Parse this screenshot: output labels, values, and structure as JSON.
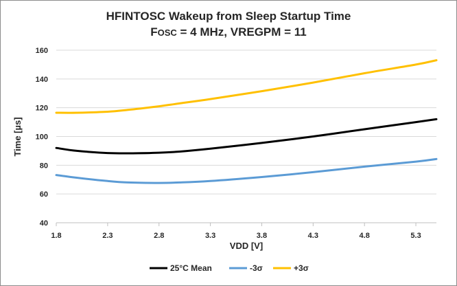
{
  "chart_data": {
    "type": "line",
    "title": "HFINTOSC Wakeup from Sleep Startup Time",
    "subtitle": {
      "prefix": "F",
      "subscript": "OSC",
      "rest": " = 4 MHz, VREGPM = 11"
    },
    "xlabel": "VDD [V]",
    "ylabel": "Time [µs]",
    "xlim": [
      1.8,
      5.5
    ],
    "ylim": [
      40,
      160
    ],
    "xticks": [
      "1.8",
      "2.3",
      "2.8",
      "3.3",
      "3.8",
      "4.3",
      "4.8",
      "5.3"
    ],
    "yticks": [
      "40",
      "60",
      "80",
      "100",
      "120",
      "140",
      "160"
    ],
    "grid": "horizontal",
    "legend_position": "bottom",
    "series": [
      {
        "name": "25°C Mean",
        "color": "#000000",
        "x": [
          1.8,
          2.0,
          2.3,
          2.5,
          2.8,
          3.0,
          3.3,
          3.8,
          4.3,
          4.8,
          5.3,
          5.5
        ],
        "y": [
          92,
          90,
          88.5,
          88.3,
          88.7,
          89.5,
          91.5,
          95.5,
          100,
          105,
          110,
          112
        ]
      },
      {
        "name": "-3σ",
        "color": "#5b9bd5",
        "x": [
          1.8,
          2.0,
          2.3,
          2.5,
          2.8,
          3.0,
          3.3,
          3.8,
          4.3,
          4.8,
          5.3,
          5.5
        ],
        "y": [
          73.2,
          71.3,
          69,
          68,
          67.7,
          68,
          69,
          71.8,
          75.2,
          79,
          82.5,
          84.3
        ]
      },
      {
        "name": "+3σ",
        "color": "#ffc000",
        "x": [
          1.8,
          2.0,
          2.3,
          2.5,
          2.8,
          3.0,
          3.3,
          3.8,
          4.3,
          4.8,
          5.3,
          5.5
        ],
        "y": [
          116.5,
          116.5,
          117.2,
          118.5,
          121,
          123,
          126,
          131.5,
          137.5,
          144,
          150,
          153
        ]
      }
    ]
  }
}
